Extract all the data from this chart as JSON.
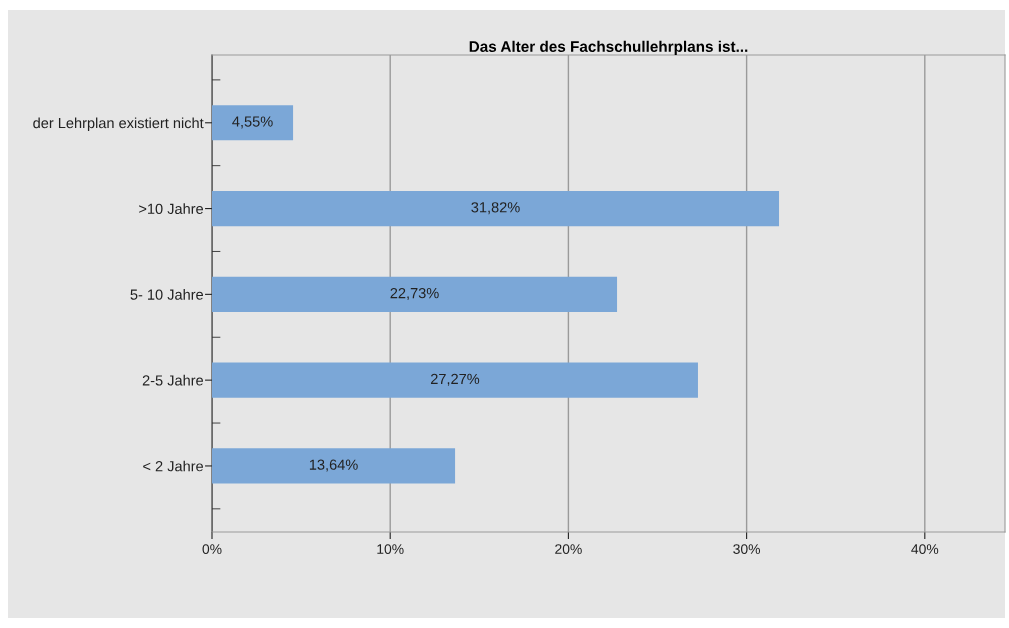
{
  "chart_data": {
    "type": "bar",
    "orientation": "horizontal",
    "title": "Das Alter des Fachschullehrplans ist...",
    "categories": [
      "der Lehrplan existiert nicht",
      ">10 Jahre",
      "5- 10 Jahre",
      "2-5 Jahre",
      "< 2 Jahre"
    ],
    "values": [
      4.55,
      31.82,
      22.73,
      27.27,
      13.64
    ],
    "value_labels": [
      "4,55%",
      "31,82%",
      "22,73%",
      "27,27%",
      "13,64%"
    ],
    "color": "#7ba7d7",
    "xlim": [
      0,
      44.5
    ],
    "xticks": [
      {
        "value": 0,
        "label": "0%"
      },
      {
        "value": 10,
        "label": "10%"
      },
      {
        "value": 20,
        "label": "20%"
      },
      {
        "value": 30,
        "label": "30%"
      },
      {
        "value": 40,
        "label": "40%"
      }
    ],
    "grid": "x"
  }
}
